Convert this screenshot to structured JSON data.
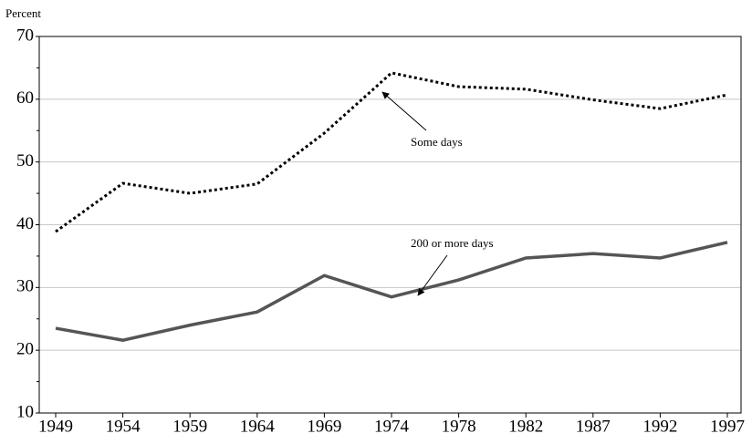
{
  "chart_data": {
    "type": "line",
    "y_label": "Percent",
    "categories": [
      "1949",
      "1954",
      "1959",
      "1964",
      "1969",
      "1974",
      "1978",
      "1982",
      "1987",
      "1992",
      "1997"
    ],
    "series": [
      {
        "name": "Some days",
        "color": "#000000",
        "style": "dotted",
        "values": [
          38.9,
          46.6,
          45,
          46.5,
          54.6,
          64.2,
          62,
          61.6,
          59.9,
          58.5,
          60.7
        ]
      },
      {
        "name": "200 or more days",
        "color": "#555555",
        "style": "solid",
        "values": [
          23.5,
          21.6,
          24,
          26.1,
          31.9,
          28.5,
          31.2,
          34.7,
          35.4,
          34.7,
          37.2
        ]
      }
    ],
    "ylim": [
      10,
      70
    ],
    "yticks": [
      10,
      20,
      30,
      40,
      50,
      60,
      70
    ],
    "grid": true
  }
}
